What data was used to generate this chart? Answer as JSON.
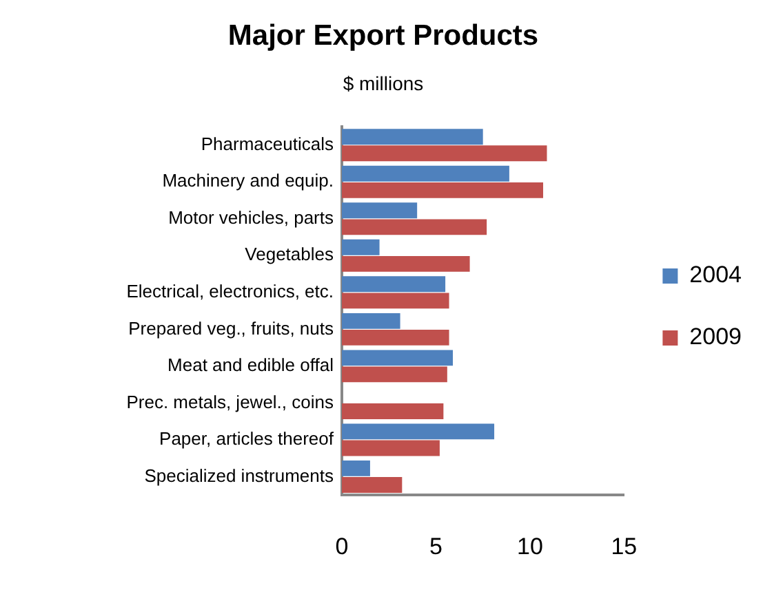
{
  "chart_data": {
    "type": "bar",
    "orientation": "horizontal",
    "title": "Major Export Products",
    "subtitle": "$ millions",
    "categories": [
      "Pharmaceuticals",
      "Machinery and equip.",
      "Motor vehicles, parts",
      "Vegetables",
      "Electrical, electronics, etc.",
      "Prepared veg., fruits, nuts",
      "Meat and edible offal",
      "Prec. metals, jewel., coins",
      "Paper, articles thereof",
      "Specialized instruments"
    ],
    "series": [
      {
        "name": "2004",
        "color": "#4f81bd",
        "values": [
          7.5,
          8.9,
          4.0,
          2.0,
          5.5,
          3.1,
          5.9,
          null,
          8.1,
          1.5
        ]
      },
      {
        "name": "2009",
        "color": "#c0504d",
        "values": [
          10.9,
          10.7,
          7.7,
          6.8,
          5.7,
          5.7,
          5.6,
          5.4,
          5.2,
          3.2
        ]
      }
    ],
    "xlim": [
      0,
      15
    ],
    "xticks": [
      0,
      5,
      10,
      15
    ],
    "grid": false,
    "legend": "right"
  }
}
